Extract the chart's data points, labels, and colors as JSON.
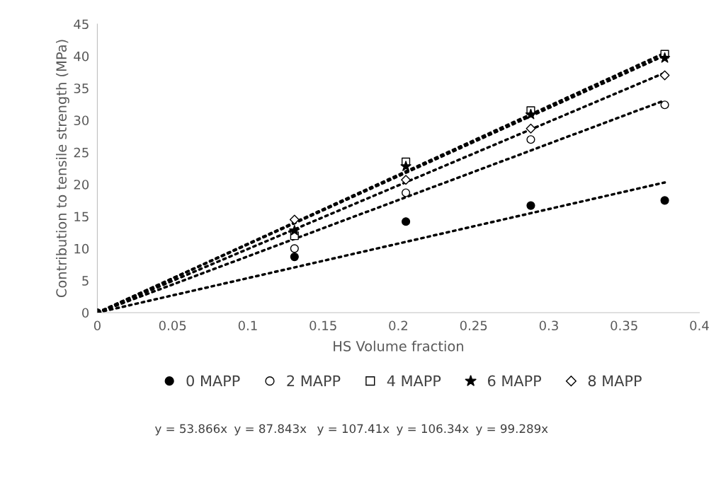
{
  "chart_data": {
    "type": "scatter",
    "xlabel": "HS Volume fraction",
    "ylabel": "Contribution to tensile strength (MPa)",
    "xlim": [
      0,
      0.4
    ],
    "xticks": [
      0,
      0.05,
      0.1,
      0.15,
      0.2,
      0.25,
      0.3,
      0.35,
      0.4
    ],
    "ylim": [
      0,
      45
    ],
    "yticks": [
      0,
      5,
      10,
      15,
      20,
      25,
      30,
      35,
      40,
      45
    ],
    "grid": false,
    "legend": "bottom",
    "series": [
      {
        "name": "0 MAPP",
        "color": "#000000",
        "marker": "circle",
        "x": [
          0,
          0.131,
          0.205,
          0.288,
          0.377
        ],
        "values": [
          0,
          8.7,
          14.2,
          16.7,
          17.5
        ]
      },
      {
        "name": "2 MAPP",
        "color": "#ffffff",
        "marker": "circle",
        "x": [
          0.131,
          0.205,
          0.288,
          0.377
        ],
        "values": [
          10.0,
          18.7,
          27.0,
          32.4
        ]
      },
      {
        "name": "4 MAPP",
        "color": "#ffffff",
        "marker": "square",
        "x": [
          0.131,
          0.205,
          0.288,
          0.377
        ],
        "values": [
          12.0,
          23.5,
          31.5,
          40.3
        ]
      },
      {
        "name": "6 MAPP",
        "color": "#000000",
        "marker": "star",
        "x": [
          0.131,
          0.205,
          0.288,
          0.377
        ],
        "values": [
          12.8,
          22.8,
          30.9,
          39.7
        ]
      },
      {
        "name": "8 MAPP",
        "color": "#ffffff",
        "marker": "diamond",
        "x": [
          0.131,
          0.205,
          0.288,
          0.377
        ],
        "values": [
          14.5,
          20.7,
          28.7,
          37.0
        ]
      },
      {
        "type": "line",
        "color": "#000000",
        "line_style": "dotted",
        "x": [
          0,
          0.377
        ],
        "values": [
          0,
          20.3
        ]
      },
      {
        "type": "line",
        "color": "#000000",
        "line_style": "dotted",
        "x": [
          0,
          0.377
        ],
        "values": [
          0,
          33.1
        ]
      },
      {
        "type": "line",
        "color": "#000000",
        "line_style": "dotted",
        "x": [
          0,
          0.377
        ],
        "values": [
          0,
          40.5
        ]
      },
      {
        "type": "line",
        "color": "#000000",
        "line_style": "dotted",
        "x": [
          0,
          0.377
        ],
        "values": [
          0,
          40.1
        ]
      },
      {
        "type": "line",
        "color": "#000000",
        "line_style": "dotted",
        "x": [
          0,
          0.377
        ],
        "values": [
          0,
          37.4
        ]
      }
    ],
    "annotations": [
      "y = 53.866x",
      "y = 87.843x",
      "y = 107.41x",
      "y = 106.34x",
      "y = 99.289x"
    ]
  }
}
